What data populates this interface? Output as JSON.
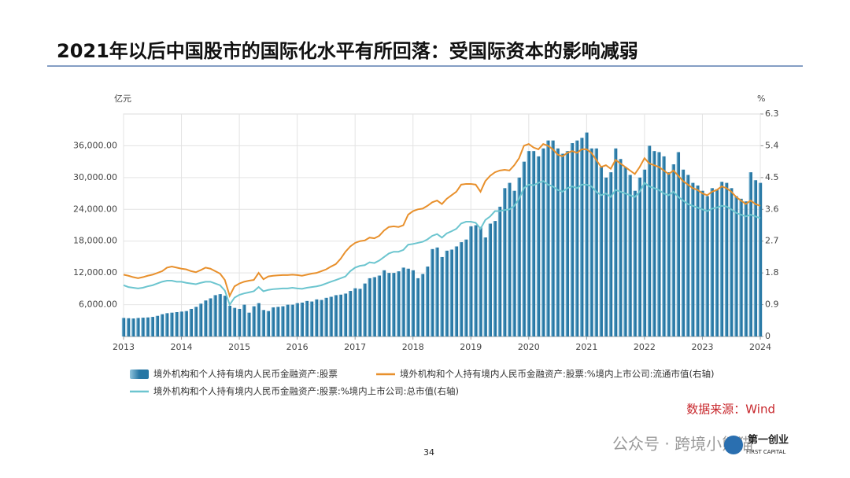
{
  "title": "2021年以后中国股市的国际化水平有所回落：受国际资本的影响减弱",
  "page_number": "34",
  "watermark": "公众号 · 跨境小熊猫",
  "logo": "第一创业",
  "logo_sub": "FIRST CAPITAL",
  "chart_data": {
    "type": "bar",
    "y_unit": "亿元",
    "y2_unit": "%",
    "source": "数据来源：Wind",
    "grid": true,
    "categories": [
      "2013",
      null,
      null,
      null,
      null,
      null,
      null,
      null,
      null,
      null,
      null,
      null,
      "2014",
      null,
      null,
      null,
      null,
      null,
      null,
      null,
      null,
      null,
      null,
      null,
      "2015",
      null,
      null,
      null,
      null,
      null,
      null,
      null,
      null,
      null,
      null,
      null,
      "2016",
      null,
      null,
      null,
      null,
      null,
      null,
      null,
      null,
      null,
      null,
      null,
      "2017",
      null,
      null,
      null,
      null,
      null,
      null,
      null,
      null,
      null,
      null,
      null,
      "2018",
      null,
      null,
      null,
      null,
      null,
      null,
      null,
      null,
      null,
      null,
      null,
      "2019",
      null,
      null,
      null,
      null,
      null,
      null,
      null,
      null,
      null,
      null,
      null,
      "2020",
      null,
      null,
      null,
      null,
      null,
      null,
      null,
      null,
      null,
      null,
      null,
      "2021",
      null,
      null,
      null,
      null,
      null,
      null,
      null,
      null,
      null,
      null,
      null,
      "2022",
      null,
      null,
      null,
      null,
      null,
      null,
      null,
      null,
      null,
      null,
      null,
      "2023",
      null,
      null,
      null,
      null,
      null,
      null,
      null,
      null,
      null,
      null,
      null,
      "2024"
    ],
    "ylim": [
      0,
      42000
    ],
    "yticks": [
      {
        "value": 6000,
        "label": "6,000.00"
      },
      {
        "value": 12000,
        "label": "12,000.00"
      },
      {
        "value": 18000,
        "label": "18,000.00"
      },
      {
        "value": 24000,
        "label": "24,000.00"
      },
      {
        "value": 30000,
        "label": "30,000.00"
      },
      {
        "value": 36000,
        "label": "36,000.00"
      }
    ],
    "y2lim": [
      0,
      6.3
    ],
    "y2ticks": [
      0,
      0.9,
      1.8,
      2.7,
      3.6,
      4.5,
      5.4,
      6.3
    ],
    "series": [
      {
        "name": "境外机构和个人持有境内人民币金融资产:股票",
        "type": "bar",
        "color": "#2777a4",
        "values": [
          3500,
          3450,
          3400,
          3500,
          3550,
          3600,
          3700,
          3900,
          4200,
          4400,
          4500,
          4600,
          4700,
          4800,
          5200,
          5600,
          6200,
          6800,
          7200,
          7800,
          8000,
          7700,
          5800,
          5400,
          5200,
          6000,
          4500,
          5700,
          6300,
          5000,
          4800,
          5500,
          5600,
          5700,
          6000,
          6000,
          6300,
          6400,
          6700,
          6600,
          7000,
          6900,
          7300,
          7500,
          7800,
          7900,
          8100,
          8600,
          9100,
          9000,
          10000,
          11000,
          11200,
          11500,
          12500,
          12000,
          12000,
          12300,
          13000,
          12800,
          12500,
          11000,
          11800,
          13200,
          16500,
          16800,
          15000,
          16200,
          16400,
          17000,
          17800,
          18300,
          20800,
          21000,
          20700,
          18700,
          21300,
          21800,
          24500,
          28000,
          29000,
          27500,
          30000,
          33000,
          35000,
          35000,
          34000,
          35500,
          37000,
          37000,
          35500,
          34500,
          35000,
          36500,
          37000,
          37500,
          38500,
          35500,
          35500,
          32000,
          30000,
          31000,
          35500,
          33500,
          32000,
          30500,
          27500,
          30000,
          31500,
          36000,
          35000,
          34800,
          34000,
          31000,
          32500,
          34800,
          31500,
          30500,
          29000,
          28500,
          27500,
          26500,
          28000,
          27800,
          29200,
          29000,
          28000,
          26500,
          26000,
          25500,
          31000,
          29500,
          29000
        ]
      },
      {
        "name": "境外机构和个人持有境内人民币金融资产:股票:%境内上市公司:流通市值(右轴)",
        "type": "line",
        "axis": "y2",
        "color": "#e8902c",
        "values": [
          1.75,
          1.72,
          1.68,
          1.65,
          1.68,
          1.72,
          1.75,
          1.8,
          1.85,
          1.95,
          1.98,
          1.95,
          1.92,
          1.9,
          1.85,
          1.82,
          1.88,
          1.95,
          1.92,
          1.85,
          1.78,
          1.6,
          1.15,
          1.42,
          1.5,
          1.55,
          1.58,
          1.6,
          1.8,
          1.62,
          1.7,
          1.72,
          1.73,
          1.74,
          1.74,
          1.75,
          1.74,
          1.72,
          1.75,
          1.78,
          1.8,
          1.85,
          1.9,
          1.98,
          2.05,
          2.2,
          2.4,
          2.55,
          2.65,
          2.7,
          2.72,
          2.8,
          2.78,
          2.85,
          3.0,
          3.1,
          3.12,
          3.1,
          3.15,
          3.45,
          3.55,
          3.6,
          3.62,
          3.7,
          3.8,
          3.85,
          3.75,
          3.9,
          4.0,
          4.1,
          4.3,
          4.32,
          4.32,
          4.3,
          4.1,
          4.4,
          4.55,
          4.65,
          4.7,
          4.72,
          4.7,
          4.85,
          5.05,
          5.4,
          5.45,
          5.35,
          5.3,
          5.45,
          5.4,
          5.3,
          5.15,
          5.1,
          5.2,
          5.25,
          5.2,
          5.3,
          5.3,
          5.2,
          5.0,
          4.8,
          4.85,
          4.75,
          5.0,
          4.9,
          4.8,
          4.7,
          4.6,
          4.8,
          5.05,
          4.9,
          4.85,
          4.8,
          4.7,
          4.6,
          4.7,
          4.55,
          4.4,
          4.3,
          4.2,
          4.15,
          4.05,
          4.0,
          4.1,
          4.15,
          4.25,
          4.2,
          4.1,
          3.95,
          3.85,
          3.75,
          3.85,
          3.75,
          3.7
        ]
      },
      {
        "name": "境外机构和个人持有境内人民币金融资产:股票:%境内上市公司:总市值(右轴)",
        "type": "line",
        "axis": "y2",
        "color": "#6cc5cf",
        "values": [
          1.45,
          1.4,
          1.38,
          1.36,
          1.38,
          1.42,
          1.45,
          1.5,
          1.55,
          1.58,
          1.58,
          1.55,
          1.55,
          1.52,
          1.5,
          1.48,
          1.52,
          1.55,
          1.55,
          1.5,
          1.45,
          1.3,
          0.9,
          1.1,
          1.18,
          1.22,
          1.25,
          1.28,
          1.4,
          1.28,
          1.32,
          1.34,
          1.35,
          1.36,
          1.36,
          1.38,
          1.36,
          1.35,
          1.38,
          1.4,
          1.42,
          1.45,
          1.5,
          1.55,
          1.6,
          1.65,
          1.7,
          1.85,
          1.95,
          2.0,
          2.02,
          2.1,
          2.08,
          2.15,
          2.25,
          2.35,
          2.4,
          2.4,
          2.45,
          2.6,
          2.62,
          2.65,
          2.68,
          2.75,
          2.85,
          2.9,
          2.8,
          2.92,
          2.98,
          3.05,
          3.2,
          3.25,
          3.25,
          3.22,
          3.05,
          3.3,
          3.4,
          3.55,
          3.55,
          3.58,
          3.6,
          3.7,
          3.9,
          4.2,
          4.3,
          4.28,
          4.35,
          4.4,
          4.3,
          4.25,
          4.15,
          4.1,
          4.2,
          4.25,
          4.2,
          4.3,
          4.3,
          4.25,
          4.1,
          4.0,
          4.05,
          3.95,
          4.15,
          4.1,
          4.05,
          4.0,
          3.95,
          4.1,
          4.35,
          4.25,
          4.2,
          4.15,
          4.05,
          4.0,
          4.1,
          3.95,
          3.85,
          3.75,
          3.7,
          3.65,
          3.6,
          3.55,
          3.62,
          3.65,
          3.7,
          3.68,
          3.6,
          3.5,
          3.45,
          3.4,
          3.45,
          3.4,
          3.35
        ]
      }
    ]
  }
}
